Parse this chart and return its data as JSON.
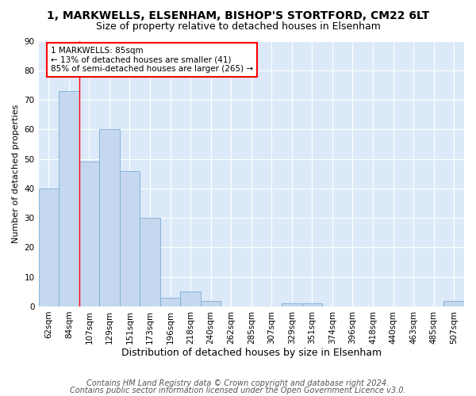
{
  "title1": "1, MARKWELLS, ELSENHAM, BISHOP'S STORTFORD, CM22 6LT",
  "title2": "Size of property relative to detached houses in Elsenham",
  "xlabel": "Distribution of detached houses by size in Elsenham",
  "ylabel": "Number of detached properties",
  "categories": [
    "62sqm",
    "84sqm",
    "107sqm",
    "129sqm",
    "151sqm",
    "173sqm",
    "196sqm",
    "218sqm",
    "240sqm",
    "262sqm",
    "285sqm",
    "307sqm",
    "329sqm",
    "351sqm",
    "374sqm",
    "396sqm",
    "418sqm",
    "440sqm",
    "463sqm",
    "485sqm",
    "507sqm"
  ],
  "values": [
    40,
    73,
    49,
    60,
    46,
    30,
    3,
    5,
    2,
    0,
    0,
    0,
    1,
    1,
    0,
    0,
    0,
    0,
    0,
    0,
    2
  ],
  "bar_color": "#c5d8ef",
  "bar_edge_color": "#7aadd4",
  "property_line_x": 1.5,
  "annotation_text": "1 MARKWELLS: 85sqm\n← 13% of detached houses are smaller (41)\n85% of semi-detached houses are larger (265) →",
  "annotation_box_color": "white",
  "annotation_box_edge_color": "red",
  "property_line_color": "red",
  "background_color": "#dce9f8",
  "footer1": "Contains HM Land Registry data © Crown copyright and database right 2024.",
  "footer2": "Contains public sector information licensed under the Open Government Licence v3.0.",
  "ylim": [
    0,
    90
  ],
  "yticks": [
    0,
    10,
    20,
    30,
    40,
    50,
    60,
    70,
    80,
    90
  ],
  "title1_fontsize": 10,
  "title2_fontsize": 9,
  "xlabel_fontsize": 9,
  "ylabel_fontsize": 8,
  "tick_fontsize": 7.5,
  "footer_fontsize": 7
}
